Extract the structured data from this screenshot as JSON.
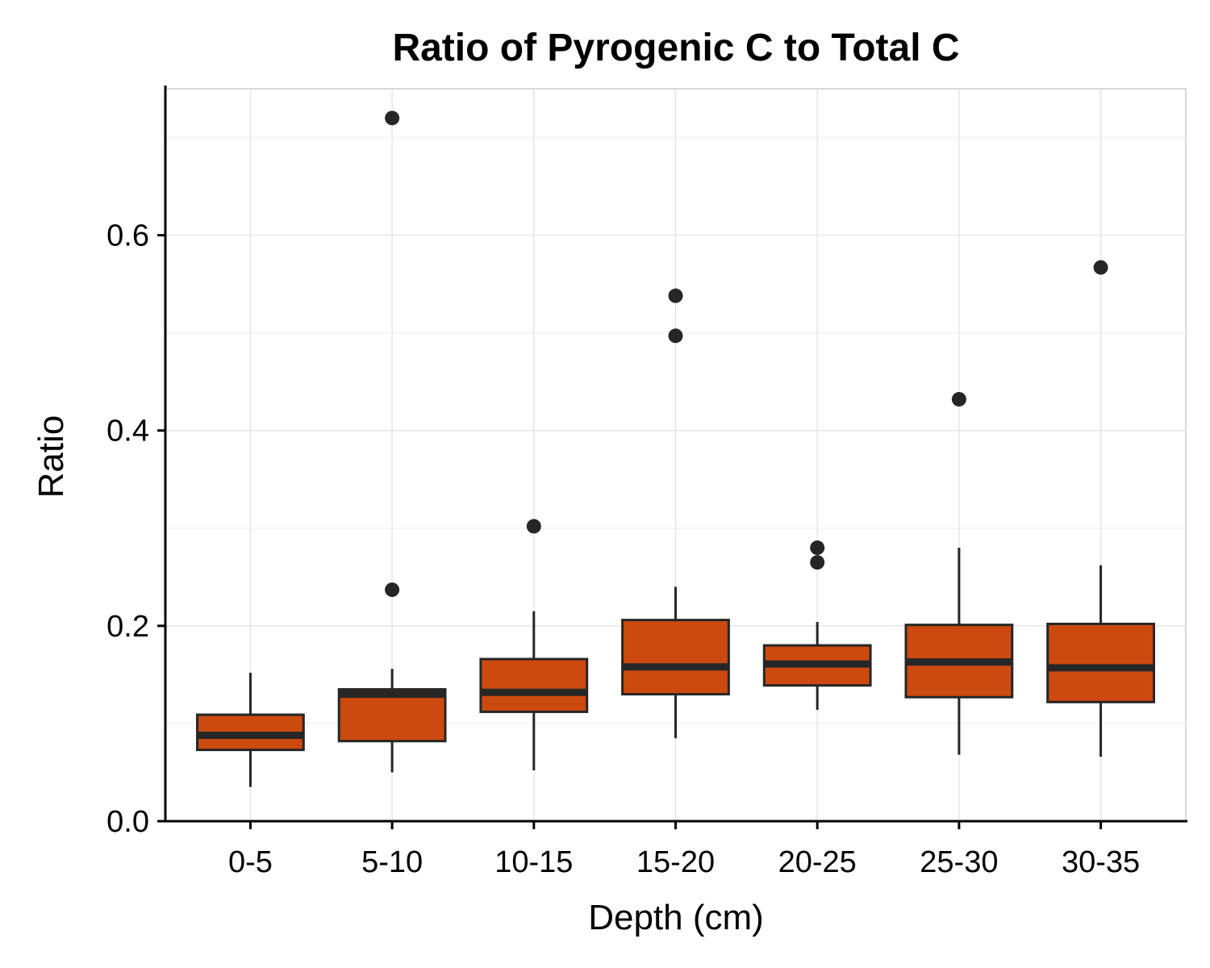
{
  "chart_data": {
    "type": "box",
    "title": "Ratio of Pyrogenic C to Total C",
    "xlabel": "Depth (cm)",
    "ylabel": "Ratio",
    "ylim": [
      0,
      0.75
    ],
    "y_ticks": [
      "0.0",
      "0.2",
      "0.4",
      "0.6"
    ],
    "y_tick_values": [
      0,
      0.2,
      0.4,
      0.6
    ],
    "categories": [
      "0-5",
      "5-10",
      "10-15",
      "15-20",
      "20-25",
      "25-30",
      "30-35"
    ],
    "boxes": [
      {
        "category": "0-5",
        "whisker_low": 0.035,
        "q1": 0.073,
        "median": 0.088,
        "q3": 0.109,
        "whisker_high": 0.152,
        "outliers": []
      },
      {
        "category": "5-10",
        "whisker_low": 0.05,
        "q1": 0.082,
        "median": 0.13,
        "q3": 0.135,
        "whisker_high": 0.156,
        "outliers": [
          0.237,
          0.72
        ]
      },
      {
        "category": "10-15",
        "whisker_low": 0.052,
        "q1": 0.112,
        "median": 0.132,
        "q3": 0.166,
        "whisker_high": 0.215,
        "outliers": [
          0.302
        ]
      },
      {
        "category": "15-20",
        "whisker_low": 0.085,
        "q1": 0.13,
        "median": 0.158,
        "q3": 0.206,
        "whisker_high": 0.24,
        "outliers": [
          0.497,
          0.538
        ]
      },
      {
        "category": "20-25",
        "whisker_low": 0.114,
        "q1": 0.139,
        "median": 0.161,
        "q3": 0.18,
        "whisker_high": 0.204,
        "outliers": [
          0.265,
          0.28
        ]
      },
      {
        "category": "25-30",
        "whisker_low": 0.068,
        "q1": 0.127,
        "median": 0.163,
        "q3": 0.201,
        "whisker_high": 0.28,
        "outliers": [
          0.432
        ]
      },
      {
        "category": "30-35",
        "whisker_low": 0.066,
        "q1": 0.122,
        "median": 0.157,
        "q3": 0.202,
        "whisker_high": 0.262,
        "outliers": [
          0.567
        ]
      }
    ],
    "grid": true,
    "legend": "none",
    "colors": {
      "box_fill": "#cc4a0f",
      "box_stroke": "#262626",
      "outlier": "#262626",
      "grid": "#e6e6e6",
      "axis": "#000000"
    }
  }
}
